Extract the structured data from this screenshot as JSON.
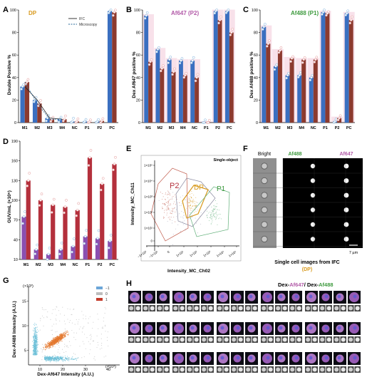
{
  "colors": {
    "blue": "#3a6fc0",
    "darkred": "#8c3a2e",
    "green": "#3d9a57",
    "purple": "#8a4fb0",
    "crimson": "#b4303c",
    "pink_bg": "#f2c8d8",
    "dp": "#d89a1e",
    "a647": "#b25aa8",
    "a488": "#3e9a3e"
  },
  "panels": {
    "A": {
      "label": "A",
      "title": "DP",
      "ylabel": "Double Positive %",
      "legend": [
        "IFC",
        "Microscopy"
      ]
    },
    "B": {
      "label": "B",
      "title": "Af647 (P2)",
      "ylabel": "Dex Af647 positive %"
    },
    "C": {
      "label": "C",
      "title": "Af488 (P1)",
      "ylabel": "Dex Af488 positive %"
    },
    "D": {
      "label": "D",
      "ylabel": "GUV/mL (×10⁶)"
    },
    "E": {
      "label": "E",
      "title": "Single-object",
      "xlabel": "Intensity_MC_Ch02",
      "ylabel": "Intensity_MC_Ch11",
      "gates": [
        "P2",
        "DP",
        "P1"
      ]
    },
    "F": {
      "label": "F",
      "headers": [
        "Bright",
        "Af488",
        "Af647"
      ],
      "scale": "7 µm",
      "caption_line1": "Single cell images from IFC",
      "caption_line2": "(DP)"
    },
    "G": {
      "label": "G",
      "xlabel": "Dex-Af647 Intensity (A.U.)",
      "ylabel": "Dex-Af488 Intensity (A.U.)",
      "exp": "(×10³)",
      "legend": [
        "−1",
        "0",
        "1"
      ]
    },
    "H": {
      "label": "H",
      "title_part1": "Dex-",
      "title_part2": "Af647",
      "title_part3": "/ Dex-",
      "title_part4": "Af488"
    }
  },
  "chart_data": [
    {
      "panel": "A",
      "type": "bar",
      "title": "DP",
      "categories": [
        "M1",
        "M2",
        "M3",
        "M4",
        "NC",
        "P1",
        "P2",
        "PC"
      ],
      "series": [
        {
          "name": "IFC",
          "values": [
            32,
            20,
            4,
            3,
            1,
            1,
            1,
            99
          ]
        },
        {
          "name": "Microscopy",
          "values": [
            36,
            17,
            3,
            3,
            1,
            0.5,
            1.5,
            98
          ]
        }
      ],
      "ylim": [
        0,
        100
      ],
      "yticks": [
        0,
        20,
        40,
        60,
        80,
        100
      ]
    },
    {
      "panel": "B",
      "type": "bar",
      "title": "Af647 (P2)",
      "categories": [
        "M1",
        "M2",
        "M3",
        "M4",
        "NC",
        "P1",
        "P2",
        "PC"
      ],
      "series": [
        {
          "values": [
            95,
            65,
            56,
            55,
            55,
            0,
            99,
            99
          ]
        },
        {
          "values": [
            54,
            48,
            45,
            42,
            40,
            0,
            91,
            80
          ]
        }
      ],
      "ylim": [
        0,
        100
      ],
      "yticks": [
        0,
        20,
        40,
        60,
        80,
        100
      ]
    },
    {
      "panel": "C",
      "type": "bar",
      "title": "Af488 (P1)",
      "categories": [
        "M1",
        "M2",
        "M3",
        "M4",
        "NC",
        "P1",
        "P2",
        "PC"
      ],
      "series": [
        {
          "values": [
            85,
            50,
            42,
            42,
            40,
            98,
            1,
            97
          ]
        },
        {
          "values": [
            70,
            64,
            57,
            56,
            56,
            97,
            4,
            91
          ]
        }
      ],
      "ylim": [
        0,
        100
      ],
      "yticks": [
        0,
        20,
        40,
        60,
        80,
        100
      ]
    },
    {
      "panel": "D",
      "type": "bar",
      "categories": [
        "M1",
        "M2",
        "M3",
        "M4",
        "NC",
        "P1",
        "P2",
        "PC"
      ],
      "series": [
        {
          "values": [
            75,
            25,
            18,
            25,
            30,
            45,
            42,
            38
          ]
        },
        {
          "values": [
            130,
            100,
            93,
            90,
            85,
            165,
            125,
            155
          ]
        }
      ],
      "ylim": [
        10,
        190
      ],
      "yticks": [
        10,
        40,
        70,
        100,
        130,
        160,
        190
      ]
    },
    {
      "panel": "G",
      "type": "scatter",
      "xlabel": "Dex-Af647 Intensity (A.U.)",
      "ylabel": "Dex-Af488 Intensity (A.U.)",
      "xlim": [
        5,
        45
      ],
      "ylim": [
        2,
        18
      ],
      "xticks": [
        10,
        20,
        30,
        40
      ],
      "yticks": [
        5,
        10,
        15
      ],
      "series": [
        {
          "name": "−1"
        },
        {
          "name": "0"
        },
        {
          "name": "1"
        }
      ]
    }
  ],
  "axes": {
    "E_xticks": [
      "−1×10²",
      "−1×10¹",
      "0",
      "1×10¹",
      "1×10²",
      "1×10³",
      "1×10⁴",
      "1×10⁵"
    ],
    "E_yticks": [
      "1×10⁵",
      "1×10⁴",
      "1×10³",
      "1×10²",
      "1×10¹",
      "0"
    ]
  }
}
